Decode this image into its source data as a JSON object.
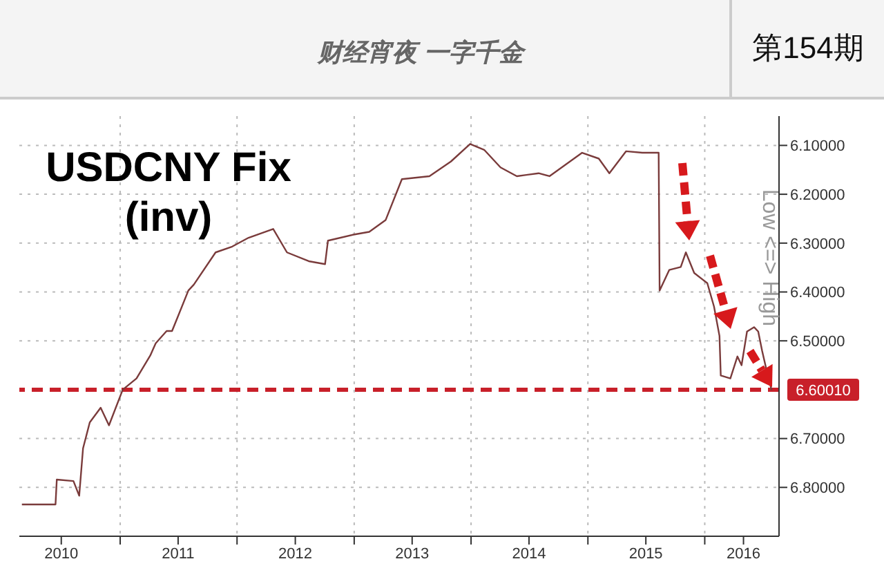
{
  "chart_data": {
    "type": "line",
    "title": "USDCNY Fix (inv)",
    "ylabel": "Low <=> High",
    "annotations": [
      "财经宵夜 一字千金",
      "第154期"
    ],
    "x": [
      "2010-02-28",
      "2010-06-13",
      "2010-06-17",
      "2010-08-08",
      "2010-08-26",
      "2010-09-07",
      "2010-09-28",
      "2010-11-01",
      "2010-11-27",
      "2011-01-09",
      "2011-02-21",
      "2011-04-05",
      "2011-04-22",
      "2011-05-26",
      "2011-06-12",
      "2011-08-02",
      "2011-08-19",
      "2011-10-26",
      "2011-12-17",
      "2012-02-06",
      "2012-04-23",
      "2012-06-05",
      "2012-08-12",
      "2012-10-02",
      "2012-10-11",
      "2012-12-27",
      "2013-02-17",
      "2013-04-09",
      "2013-05-30",
      "2013-08-24",
      "2013-10-30",
      "2013-12-29",
      "2014-02-11",
      "2014-04-03",
      "2014-05-24",
      "2014-07-31",
      "2014-09-03",
      "2014-10-24",
      "2014-12-14",
      "2015-02-04",
      "2015-03-09",
      "2015-04-30",
      "2015-06-20",
      "2015-08-10",
      "2015-08-13",
      "2015-09-12",
      "2015-10-18",
      "2015-11-03",
      "2015-11-29",
      "2016-01-09",
      "2016-01-30",
      "2016-02-16",
      "2016-02-20",
      "2016-03-21",
      "2016-04-12",
      "2016-04-25",
      "2016-05-12",
      "2016-06-03",
      "2016-06-16",
      "2016-06-28",
      "2016-07-16",
      "2016-07-28"
    ],
    "series": [
      {
        "color": "#7a3b3b",
        "values": [
          6.835,
          6.835,
          6.784,
          6.787,
          6.817,
          6.72,
          6.667,
          6.637,
          6.673,
          6.6,
          6.577,
          6.53,
          6.505,
          6.48,
          6.48,
          6.397,
          6.385,
          6.319,
          6.307,
          6.289,
          6.271,
          6.319,
          6.337,
          6.343,
          6.295,
          6.283,
          6.277,
          6.253,
          6.169,
          6.163,
          6.133,
          6.097,
          6.109,
          6.145,
          6.163,
          6.157,
          6.163,
          6.139,
          6.115,
          6.127,
          6.157,
          6.112,
          6.115,
          6.115,
          6.397,
          6.355,
          6.349,
          6.319,
          6.361,
          6.382,
          6.43,
          6.49,
          6.571,
          6.577,
          6.532,
          6.55,
          6.481,
          6.472,
          6.481,
          6.52,
          6.571,
          6.601
        ]
      }
    ],
    "xlim": [
      "2010-02-20",
      "2016-08-20"
    ],
    "xticks": [
      {
        "value": "2011-01-01",
        "label": null
      },
      {
        "value": "2012-01-01",
        "label": null
      },
      {
        "value": "2013-01-01",
        "label": null
      },
      {
        "value": "2014-01-01",
        "label": null
      },
      {
        "value": "2015-01-01",
        "label": null
      },
      {
        "value": "2016-01-01",
        "label": null
      },
      {
        "value": "2010-07-01",
        "label": "2010"
      },
      {
        "value": "2011-07-01",
        "label": "2011"
      },
      {
        "value": "2012-07-01",
        "label": "2012"
      },
      {
        "value": "2013-07-01",
        "label": "2013"
      },
      {
        "value": "2014-07-01",
        "label": "2014"
      },
      {
        "value": "2015-07-01",
        "label": "2015"
      },
      {
        "value": "2016-05-01",
        "label": "2016"
      }
    ],
    "ylim": [
      6.9,
      6.04
    ],
    "yticks": [
      {
        "value": 6.1,
        "label": "6.10000"
      },
      {
        "value": 6.2,
        "label": "6.20000"
      },
      {
        "value": 6.3,
        "label": "6.30000"
      },
      {
        "value": 6.4,
        "label": "6.40000"
      },
      {
        "value": 6.5,
        "label": "6.50000"
      },
      {
        "value": 6.7,
        "label": "6.70000"
      },
      {
        "value": 6.8,
        "label": "6.80000"
      }
    ],
    "ref_lines": [
      {
        "axis": "y",
        "value": 6.6001,
        "label": "6.60010",
        "color": "#c8202a",
        "line_style": "dashed"
      }
    ],
    "grid": true,
    "marker": "none",
    "line_style": "solid"
  }
}
